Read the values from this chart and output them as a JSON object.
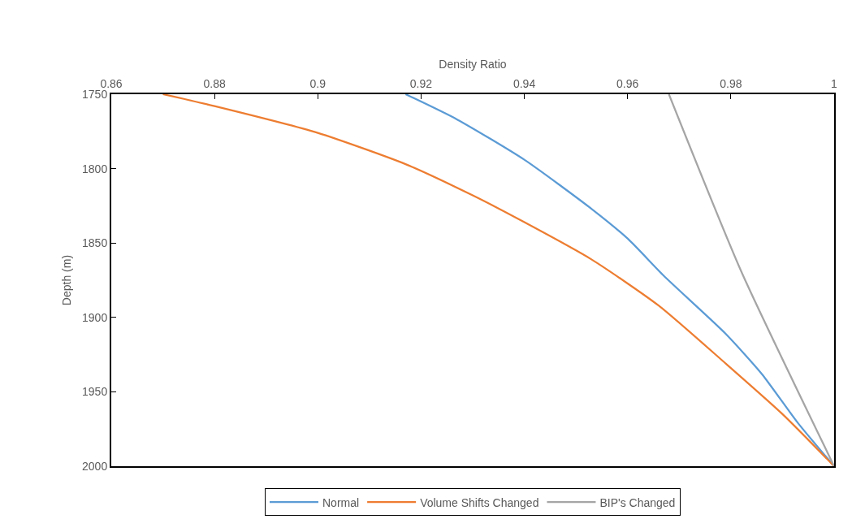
{
  "chart_data": {
    "type": "line",
    "xlabel": "Density Ratio",
    "ylabel": "Depth (m)",
    "xlim": [
      0.86,
      1
    ],
    "xticks": [
      0.86,
      0.88,
      0.9,
      0.92,
      0.94,
      0.96,
      0.98,
      1
    ],
    "ylim": [
      2000,
      1750
    ],
    "yticks": [
      1750,
      1800,
      1850,
      1900,
      1950,
      2000
    ],
    "grid": false,
    "legend": "bottom",
    "line_style": "solid",
    "marker": "none",
    "series": [
      {
        "name": "Normal",
        "color": "#5b9bd5",
        "x": [
          0.917,
          0.927,
          0.94,
          0.953,
          0.96,
          0.967,
          0.979,
          0.986,
          0.993,
          1
        ],
        "values": [
          1750,
          1767,
          1794,
          1827,
          1847,
          1872,
          1911,
          1938,
          1971,
          2000
        ]
      },
      {
        "name": "Volume Shifts Changed",
        "color": "#ed7d31",
        "x": [
          0.87,
          0.88,
          0.9,
          0.917,
          0.93,
          0.94,
          0.953,
          0.966,
          0.979,
          0.99,
          1
        ],
        "values": [
          1750,
          1758,
          1776,
          1797,
          1818,
          1836,
          1861,
          1892,
          1931,
          1965,
          2000
        ]
      },
      {
        "name": "BIP's Changed",
        "color": "#a5a5a5",
        "x": [
          0.968,
          0.982,
          1
        ],
        "values": [
          1750,
          1869,
          2000
        ]
      }
    ]
  }
}
